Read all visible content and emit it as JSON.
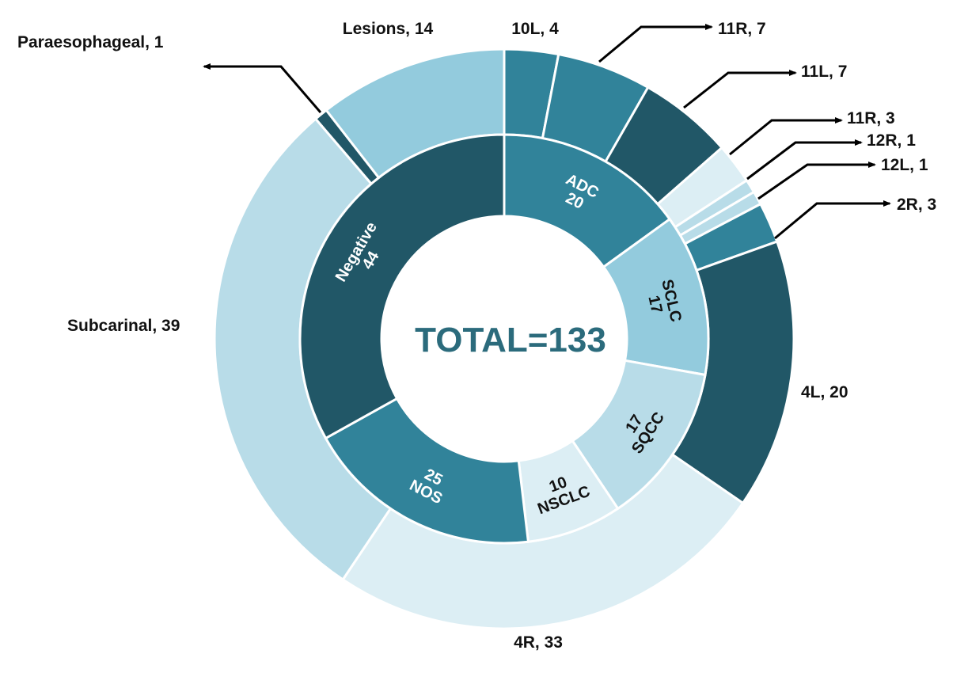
{
  "chart_data": {
    "type": "donut",
    "center_text": "TOTAL=133",
    "inner_ring": [
      {
        "label": "ADC",
        "value": 20,
        "color": "#31839a"
      },
      {
        "label": "SCLC",
        "value": 17,
        "color": "#93cbdd"
      },
      {
        "label": "SQCC",
        "value": 17,
        "color": "#b8dce8"
      },
      {
        "label": "NSCLC",
        "value": 10,
        "color": "#dceef4"
      },
      {
        "label": "NOS",
        "value": 25,
        "color": "#31839a"
      },
      {
        "label": "Negative",
        "value": 44,
        "color": "#215767"
      }
    ],
    "outer_ring": [
      {
        "label": "10L, 4",
        "value": 4,
        "color": "#31839a"
      },
      {
        "label": "11R, 7",
        "value": 7,
        "color": "#31839a"
      },
      {
        "label": "11L, 7",
        "value": 7,
        "color": "#215767"
      },
      {
        "label": "11R, 3",
        "value": 3,
        "color": "#dceef4"
      },
      {
        "label": "12R, 1",
        "value": 1,
        "color": "#b8dce8"
      },
      {
        "label": "12L, 1",
        "value": 1,
        "color": "#b8dce8"
      },
      {
        "label": "2R, 3",
        "value": 3,
        "color": "#31839a"
      },
      {
        "label": "4L, 20",
        "value": 20,
        "color": "#215767"
      },
      {
        "label": "4R, 33",
        "value": 33,
        "color": "#dceef4"
      },
      {
        "label": "Subcarinal, 39",
        "value": 39,
        "color": "#b8dce8"
      },
      {
        "label": "Paraesophageal, 1",
        "value": 1,
        "color": "#215767"
      },
      {
        "label": "Lesions, 14",
        "value": 14,
        "color": "#93cbdd"
      }
    ]
  }
}
